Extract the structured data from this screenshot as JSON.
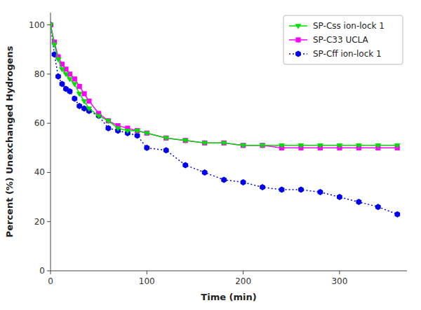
{
  "chart_data": {
    "type": "line",
    "xlabel": "Time (min)",
    "ylabel": "Percent (%) Unexchanged Hydrogens",
    "xlim": [
      0,
      370
    ],
    "ylim": [
      0,
      105
    ],
    "xticks": [
      0,
      100,
      200,
      300
    ],
    "yticks": [
      0,
      20,
      40,
      60,
      80,
      100
    ],
    "grid": false,
    "legend": "upper right",
    "x": [
      0,
      4,
      8,
      12,
      16,
      20,
      25,
      30,
      35,
      40,
      50,
      60,
      70,
      80,
      90,
      100,
      120,
      140,
      160,
      180,
      200,
      220,
      240,
      260,
      280,
      300,
      320,
      340,
      360
    ],
    "series": [
      {
        "name": "SP-Css ion-lock 1",
        "color": "#00DD00",
        "marker": "triangle-down",
        "line_style": "solid",
        "values": [
          100,
          92,
          86,
          82,
          80,
          78,
          76,
          72,
          69,
          66,
          63,
          61,
          58,
          57,
          57,
          56,
          54,
          53,
          52,
          52,
          51,
          51,
          51,
          51,
          51,
          51,
          51,
          51,
          51
        ]
      },
      {
        "name": "SP-C33 UCLA",
        "color": "#FF00FF",
        "marker": "square",
        "line_style": "solid",
        "values": [
          100,
          93,
          87,
          84,
          82,
          80,
          78,
          75,
          72,
          69,
          64,
          61,
          59,
          58,
          57,
          56,
          54,
          53,
          52,
          52,
          51,
          51,
          50,
          50,
          50,
          50,
          50,
          50,
          50
        ]
      },
      {
        "name": "SP-Cff ion-lock 1",
        "color": "#0000EE",
        "marker": "hexagon",
        "line_style": "dotted",
        "values": [
          100,
          88,
          79,
          76,
          74,
          73,
          70,
          67,
          66,
          65,
          63,
          58,
          57,
          56,
          55,
          50,
          49,
          43,
          40,
          37,
          36,
          34,
          33,
          33,
          32,
          30,
          28,
          26,
          23
        ]
      }
    ]
  }
}
